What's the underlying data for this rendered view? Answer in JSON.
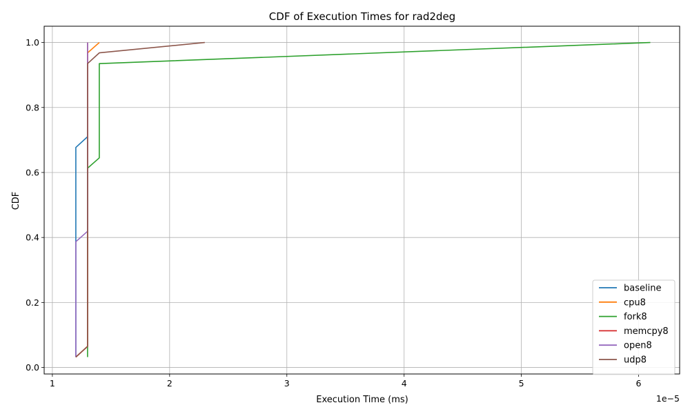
{
  "chart_data": {
    "type": "line",
    "title": "CDF of Execution Times for rad2deg",
    "xlabel": "Execution Time (ms)",
    "ylabel": "CDF",
    "x_scale_note": "1e−5",
    "xlim": [
      0.93,
      6.35
    ],
    "ylim": [
      -0.02,
      1.05
    ],
    "x_ticks": [
      1,
      2,
      3,
      4,
      5,
      6
    ],
    "x_tick_labels": [
      "1",
      "2",
      "3",
      "4",
      "5",
      "6"
    ],
    "y_ticks": [
      0.0,
      0.2,
      0.4,
      0.6,
      0.8,
      1.0
    ],
    "y_tick_labels": [
      "0.0",
      "0.2",
      "0.4",
      "0.6",
      "0.8",
      "1.0"
    ],
    "grid": true,
    "legend_position": "lower-right",
    "series": [
      {
        "name": "baseline",
        "color": "#1f77b4",
        "x": [
          1.2,
          1.2,
          1.3
        ],
        "y": [
          0.032,
          0.677,
          0.71
        ]
      },
      {
        "name": "cpu8",
        "color": "#ff7f0e",
        "x": [
          1.2,
          1.3,
          1.3,
          1.4
        ],
        "y": [
          0.032,
          0.065,
          0.968,
          1.0
        ]
      },
      {
        "name": "fork8",
        "color": "#2ca02c",
        "x": [
          1.3,
          1.3,
          1.4,
          1.4,
          6.1
        ],
        "y": [
          0.032,
          0.613,
          0.645,
          0.935,
          1.0
        ]
      },
      {
        "name": "memcpy8",
        "color": "#d62728",
        "x": [
          1.2,
          1.3,
          1.3
        ],
        "y": [
          0.032,
          0.065,
          1.0
        ]
      },
      {
        "name": "open8",
        "color": "#9467bd",
        "x": [
          1.2,
          1.2,
          1.3,
          1.3
        ],
        "y": [
          0.032,
          0.387,
          0.419,
          1.0
        ]
      },
      {
        "name": "udp8",
        "color": "#8c564b",
        "x": [
          1.2,
          1.3,
          1.3,
          1.4,
          2.3
        ],
        "y": [
          0.032,
          0.065,
          0.935,
          0.968,
          1.0
        ]
      }
    ]
  }
}
